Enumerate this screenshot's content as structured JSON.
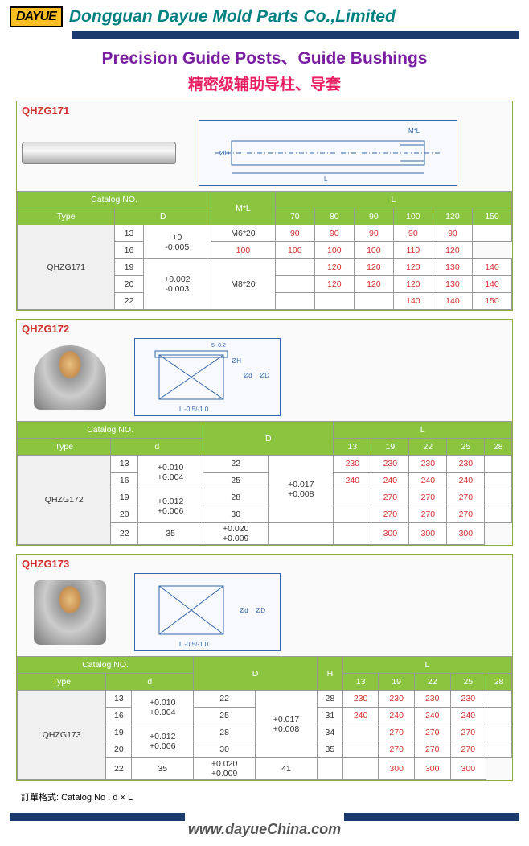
{
  "header": {
    "logo": "DAYUE",
    "company": "Dongguan Dayue Mold Parts Co.,Limited"
  },
  "title": "Precision Guide Posts、Guide Bushings",
  "subtitle": "精密级辅助导柱、导套",
  "footer": "www.dayueChina.com",
  "orderNote": "訂單格式: Catalog No . d × L",
  "colors": {
    "headerGreen": "#8bc540",
    "red": "#d32f2f",
    "border": "#999"
  },
  "t171": {
    "code": "QHZG171",
    "headers": {
      "catalog": "Catalog NO.",
      "type": "Type",
      "D": "D",
      "ML": "M*L",
      "L": "L"
    },
    "Lcols": [
      "70",
      "80",
      "90",
      "100",
      "120",
      "150"
    ],
    "rows": [
      {
        "type": "QHZG171",
        "D": "13",
        "tol": "+0\n-0.005",
        "ML": "M6*20",
        "L": [
          "90",
          "90",
          "90",
          "90",
          "90",
          ""
        ]
      },
      {
        "D": "16",
        "L": [
          "100",
          "100",
          "100",
          "100",
          "110",
          "120"
        ]
      },
      {
        "D": "19",
        "tol": "+0.002\n-0.003",
        "ML": "M8*20",
        "L": [
          "",
          "120",
          "120",
          "120",
          "130",
          "140"
        ]
      },
      {
        "D": "20",
        "L": [
          "",
          "120",
          "120",
          "120",
          "130",
          "140"
        ]
      },
      {
        "D": "22",
        "L": [
          "",
          "",
          "",
          "140",
          "140",
          "150"
        ]
      }
    ]
  },
  "t172": {
    "code": "QHZG172",
    "headers": {
      "catalog": "Catalog NO.",
      "type": "Type",
      "d": "d",
      "D": "D",
      "L": "L"
    },
    "Lcols": [
      "13",
      "19",
      "22",
      "25",
      "28"
    ],
    "rows": [
      {
        "type": "QHZG172",
        "d": "13",
        "dtol": "+0.010\n+0.004",
        "D": "22",
        "Dtol": "+0.017\n+0.008",
        "L": [
          "230",
          "230",
          "230",
          "230",
          ""
        ]
      },
      {
        "d": "16",
        "D": "25",
        "L": [
          "240",
          "240",
          "240",
          "240",
          ""
        ]
      },
      {
        "d": "19",
        "dtol": "+0.012\n+0.006",
        "D": "28",
        "L": [
          "",
          "270",
          "270",
          "270",
          ""
        ]
      },
      {
        "d": "20",
        "D": "30",
        "L": [
          "",
          "270",
          "270",
          "270",
          ""
        ]
      },
      {
        "d": "22",
        "D": "35",
        "Dtol": "+0.020\n+0.009",
        "L": [
          "",
          "",
          "300",
          "300",
          "300"
        ]
      }
    ]
  },
  "t173": {
    "code": "QHZG173",
    "headers": {
      "catalog": "Catalog NO.",
      "type": "Type",
      "d": "d",
      "D": "D",
      "H": "H",
      "L": "L"
    },
    "Lcols": [
      "13",
      "19",
      "22",
      "25",
      "28"
    ],
    "rows": [
      {
        "type": "QHZG173",
        "d": "13",
        "dtol": "+0.010\n+0.004",
        "D": "22",
        "Dtol": "+0.017\n+0.008",
        "H": "28",
        "L": [
          "230",
          "230",
          "230",
          "230",
          ""
        ]
      },
      {
        "d": "16",
        "D": "25",
        "H": "31",
        "L": [
          "240",
          "240",
          "240",
          "240",
          ""
        ]
      },
      {
        "d": "19",
        "dtol": "+0.012\n+0.006",
        "D": "28",
        "H": "34",
        "L": [
          "",
          "270",
          "270",
          "270",
          ""
        ]
      },
      {
        "d": "20",
        "D": "30",
        "H": "35",
        "L": [
          "",
          "270",
          "270",
          "270",
          ""
        ]
      },
      {
        "d": "22",
        "D": "35",
        "Dtol": "+0.020\n+0.009",
        "H": "41",
        "L": [
          "",
          "",
          "300",
          "300",
          "300"
        ]
      }
    ]
  }
}
